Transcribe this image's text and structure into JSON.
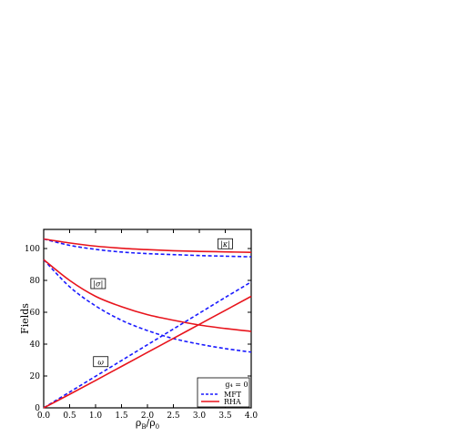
{
  "chart_data": {
    "type": "line",
    "xlabel_main": "ρ",
    "xlabel_sub1": "B",
    "xlabel_sep": "/ρ",
    "xlabel_sub2": "0",
    "ylabel": "Fields",
    "xlim": [
      0.0,
      4.0
    ],
    "ylim": [
      0,
      112
    ],
    "x_ticks": [
      "0.0",
      "0.5",
      "1.0",
      "1.5",
      "2.0",
      "2.5",
      "3.0",
      "3.5",
      "4.0"
    ],
    "y_ticks": [
      "0",
      "20",
      "40",
      "60",
      "80",
      "100"
    ],
    "x_tick_values": [
      0.0,
      0.5,
      1.0,
      1.5,
      2.0,
      2.5,
      3.0,
      3.5,
      4.0
    ],
    "y_tick_values": [
      0,
      20,
      40,
      60,
      80,
      100
    ],
    "x": [
      0.0,
      0.5,
      1.0,
      1.5,
      2.0,
      2.5,
      3.0,
      3.5,
      4.0
    ],
    "series": [
      {
        "name": "MFT",
        "group": "kappa",
        "style": "dashed",
        "color": "#1a1aff",
        "values": [
          106,
          102,
          99.5,
          97.8,
          96.8,
          96.2,
          95.6,
          95.2,
          94.8
        ]
      },
      {
        "name": "RHA",
        "group": "kappa",
        "style": "solid",
        "color": "#e8141c",
        "values": [
          106,
          103.5,
          101.5,
          100.2,
          99.3,
          98.6,
          98.2,
          97.9,
          97.6
        ]
      },
      {
        "name": "MFT",
        "group": "sigma",
        "style": "dashed",
        "color": "#1a1aff",
        "values": [
          93,
          76,
          64,
          55,
          48.5,
          43.5,
          40,
          37.2,
          35
        ]
      },
      {
        "name": "RHA",
        "group": "sigma",
        "style": "solid",
        "color": "#e8141c",
        "values": [
          93,
          80,
          70,
          63.5,
          58.5,
          55,
          52,
          49.8,
          48
        ]
      },
      {
        "name": "MFT",
        "group": "omega",
        "style": "dashed",
        "color": "#1a1aff",
        "values": [
          0,
          9.9,
          19.8,
          29.7,
          39.6,
          49.5,
          59.4,
          69.3,
          79
        ]
      },
      {
        "name": "RHA",
        "group": "omega",
        "style": "solid",
        "color": "#e8141c",
        "values": [
          0,
          8.5,
          17.2,
          26,
          34.8,
          43.6,
          52.4,
          61.2,
          70
        ]
      }
    ],
    "annotations": [
      {
        "text": "|κ|",
        "x": 3.5,
        "y": 103
      },
      {
        "text": "|σ|",
        "x": 1.05,
        "y": 78
      },
      {
        "text": "ω",
        "x": 1.1,
        "y": 29
      }
    ],
    "legend": {
      "placement": "bottom-right",
      "title": "g₄ = 0",
      "entries": [
        "MFT",
        "RHA"
      ]
    },
    "grid": false
  }
}
